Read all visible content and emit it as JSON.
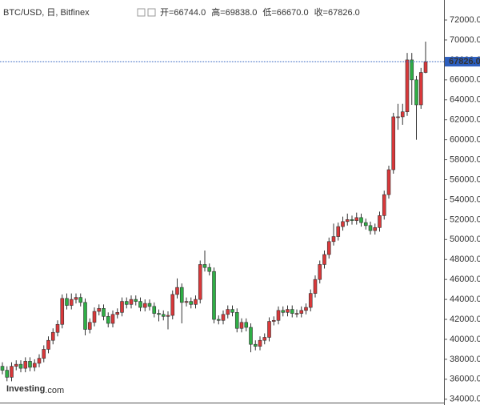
{
  "chart_data": {
    "type": "candlestick",
    "title": "BTC/USD, 日, Bitfinex",
    "header_quote": [
      "开=66744.0",
      "高=69838.0",
      "低=66670.0",
      "收=67826.0"
    ],
    "watermark": [
      "Investing",
      ".com"
    ],
    "up_color": "#d9383a",
    "down_color": "#2eae45",
    "last_price": {
      "value": 67826,
      "label": "67826.0"
    },
    "ylim": [
      33950,
      72000
    ],
    "yticks": [
      {
        "value": 34000,
        "label": "34000.0"
      },
      {
        "value": 36000,
        "label": "36000.0"
      },
      {
        "value": 38000,
        "label": "38000.0"
      },
      {
        "value": 40000,
        "label": "40000.0"
      },
      {
        "value": 42000,
        "label": "42000.0"
      },
      {
        "value": 44000,
        "label": "44000.0"
      },
      {
        "value": 46000,
        "label": "46000.0"
      },
      {
        "value": 48000,
        "label": "48000.0"
      },
      {
        "value": 50000,
        "label": "50000.0"
      },
      {
        "value": 52000,
        "label": "52000.0"
      },
      {
        "value": 54000,
        "label": "54000.0"
      },
      {
        "value": 56000,
        "label": "56000.0"
      },
      {
        "value": 58000,
        "label": "58000.0"
      },
      {
        "value": 60000,
        "label": "60000.0"
      },
      {
        "value": 62000,
        "label": "62000.0"
      },
      {
        "value": 64000,
        "label": "64000.0"
      },
      {
        "value": 66000,
        "label": "66000.0"
      },
      {
        "value": 68000,
        "label": "68000.0"
      },
      {
        "value": 70000,
        "label": "70000.0"
      },
      {
        "value": 72000,
        "label": "72000.0"
      }
    ],
    "open": [
      37300,
      36900,
      36200,
      37300,
      37500,
      37100,
      37800,
      37200,
      37600,
      38100,
      39000,
      39900,
      40700,
      41500,
      44100,
      43400,
      44000,
      44200,
      43700,
      41000,
      41700,
      42800,
      43100,
      42300,
      41600,
      42500,
      42700,
      43800,
      43500,
      44000,
      43800,
      43200,
      43600,
      43300,
      42600,
      42500,
      42300,
      42400,
      44500,
      45200,
      43700,
      43800,
      43500,
      44000,
      47500,
      47200,
      46800,
      42000,
      41900,
      42500,
      43000,
      42700,
      41100,
      41700,
      41200,
      39500,
      39300,
      39900,
      40200,
      41800,
      41900,
      42900,
      42700,
      43000,
      42600,
      42600,
      42900,
      43200,
      44600,
      46000,
      47500,
      48500,
      49800,
      50300,
      51300,
      51800,
      52000,
      51900,
      52200,
      51700,
      51400,
      50900,
      51200,
      52400,
      54500,
      57000,
      62300,
      62300,
      62800,
      68000,
      66000,
      63500,
      66744
    ],
    "high": [
      37700,
      37300,
      37700,
      37900,
      37900,
      38200,
      38200,
      38000,
      38500,
      39400,
      40300,
      41100,
      41900,
      44500,
      44600,
      44600,
      44600,
      44600,
      44100,
      42100,
      43200,
      43500,
      43500,
      42700,
      42900,
      43100,
      44200,
      44200,
      44400,
      44400,
      44200,
      44000,
      44000,
      43700,
      43000,
      42900,
      42800,
      44900,
      46100,
      45600,
      44200,
      44200,
      44400,
      47900,
      48900,
      47600,
      47200,
      42400,
      42900,
      43400,
      43400,
      43100,
      42100,
      42100,
      41600,
      39900,
      40300,
      40600,
      42200,
      42300,
      43300,
      43300,
      43400,
      43400,
      43000,
      43300,
      43600,
      45000,
      46400,
      47900,
      48900,
      50200,
      51600,
      51700,
      52300,
      52600,
      52400,
      52700,
      52600,
      52100,
      51800,
      51600,
      52800,
      54900,
      57400,
      62700,
      63600,
      63600,
      68700,
      68700,
      66400,
      67200,
      69838
    ],
    "low": [
      36500,
      35800,
      35800,
      36900,
      36700,
      36700,
      36800,
      36800,
      37200,
      37700,
      38600,
      39500,
      40300,
      41100,
      43000,
      43000,
      43600,
      43300,
      40400,
      40600,
      41300,
      42400,
      41900,
      41200,
      41200,
      42100,
      42300,
      43100,
      43100,
      43400,
      42800,
      42800,
      42900,
      42200,
      41800,
      41900,
      41000,
      42000,
      44100,
      41600,
      43300,
      43100,
      43100,
      43600,
      46800,
      46400,
      41600,
      41500,
      41500,
      42100,
      42300,
      40700,
      40700,
      40800,
      38700,
      38900,
      38900,
      39500,
      39800,
      41400,
      41500,
      42300,
      42300,
      42200,
      42200,
      42200,
      42500,
      42800,
      44200,
      45600,
      47100,
      48100,
      49400,
      49900,
      50900,
      51400,
      51500,
      51500,
      51300,
      51000,
      50500,
      50500,
      50800,
      52000,
      54100,
      56600,
      61000,
      61500,
      62400,
      63500,
      60000,
      63100,
      66670
    ],
    "close": [
      36900,
      36200,
      37300,
      37500,
      37100,
      37800,
      37200,
      37600,
      38100,
      39000,
      39900,
      40700,
      41500,
      44100,
      43400,
      44000,
      44200,
      43700,
      41000,
      41700,
      42800,
      43100,
      42300,
      41600,
      42500,
      42700,
      43800,
      43500,
      44000,
      43800,
      43200,
      43600,
      43300,
      42600,
      42500,
      42300,
      42400,
      44500,
      45200,
      43700,
      43800,
      43500,
      44000,
      47500,
      47200,
      46800,
      42000,
      41900,
      42500,
      43000,
      42700,
      41100,
      41700,
      41200,
      39500,
      39300,
      39900,
      40200,
      41800,
      41900,
      42900,
      42700,
      43000,
      42600,
      42600,
      42900,
      43200,
      44600,
      46000,
      47500,
      48500,
      49800,
      50300,
      51300,
      51800,
      52000,
      51900,
      52200,
      51700,
      51400,
      50900,
      51200,
      52400,
      54500,
      57000,
      62300,
      62300,
      62800,
      68000,
      66000,
      63500,
      66744,
      67826
    ]
  }
}
